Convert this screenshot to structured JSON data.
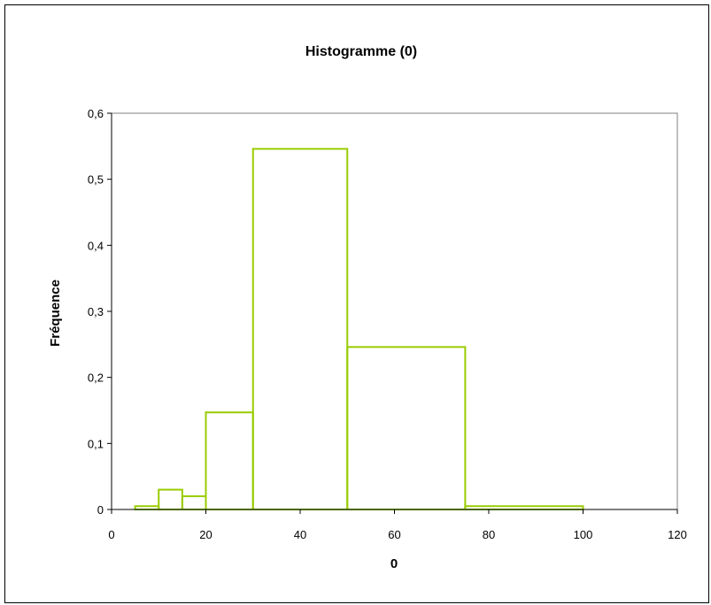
{
  "chart_data": {
    "type": "bar",
    "title": "Histogramme (0)",
    "xlabel": "0",
    "ylabel": "Fréquence",
    "xlim": [
      0,
      120
    ],
    "ylim": [
      0,
      0.6
    ],
    "x_ticks": [
      0,
      20,
      40,
      60,
      80,
      100,
      120
    ],
    "y_ticks": [
      0,
      0.1,
      0.2,
      0.3,
      0.4,
      0.5,
      0.6
    ],
    "x_tick_labels": [
      "0",
      "20",
      "40",
      "60",
      "80",
      "100",
      "120"
    ],
    "y_tick_labels": [
      "0",
      "0,1",
      "0,2",
      "0,3",
      "0,4",
      "0,5",
      "0,6"
    ],
    "grid": false,
    "bar_color": "#99cc00",
    "bins": [
      {
        "from": 5,
        "to": 10,
        "value": 0.005
      },
      {
        "from": 10,
        "to": 15,
        "value": 0.03
      },
      {
        "from": 15,
        "to": 20,
        "value": 0.02
      },
      {
        "from": 20,
        "to": 30,
        "value": 0.147
      },
      {
        "from": 30,
        "to": 50,
        "value": 0.546
      },
      {
        "from": 50,
        "to": 75,
        "value": 0.246
      },
      {
        "from": 75,
        "to": 100,
        "value": 0.005
      }
    ]
  }
}
